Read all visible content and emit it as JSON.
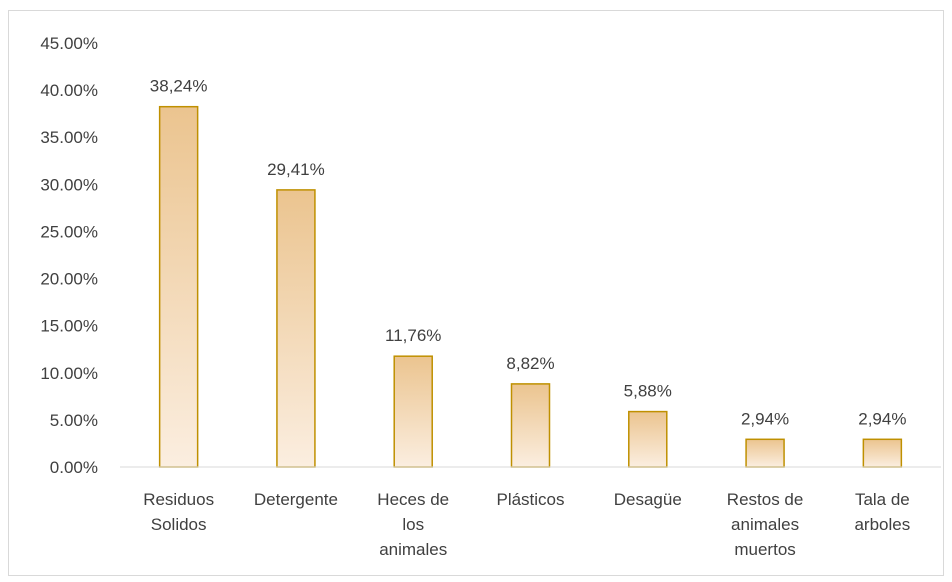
{
  "chart_data": {
    "type": "bar",
    "title": "",
    "xlabel": "",
    "ylabel": "",
    "ylim": [
      0,
      45
    ],
    "yticks": [
      "0.00%",
      "5.00%",
      "10.00%",
      "15.00%",
      "20.00%",
      "25.00%",
      "30.00%",
      "35.00%",
      "40.00%",
      "45.00%"
    ],
    "grid": false,
    "legend": "none",
    "categories": [
      [
        "Residuos",
        "Solidos"
      ],
      [
        "Detergente"
      ],
      [
        "Heces de",
        "los",
        "animales"
      ],
      [
        "Plásticos"
      ],
      [
        "Desagüe"
      ],
      [
        "Restos de",
        "animales",
        "muertos"
      ],
      [
        "Tala de",
        "arboles"
      ]
    ],
    "values": [
      38.24,
      29.41,
      11.76,
      8.82,
      5.88,
      2.94,
      2.94
    ],
    "data_labels": [
      "38,24%",
      "29,41%",
      "11,76%",
      "8,82%",
      "5,88%",
      "2,94%",
      "2,94%"
    ],
    "colors": {
      "bar_top": "#ebc48f",
      "bar_bottom": "#fbeee0",
      "bar_border": "#bf9000",
      "axis": "#d9d9d9",
      "text": "#404040"
    }
  }
}
